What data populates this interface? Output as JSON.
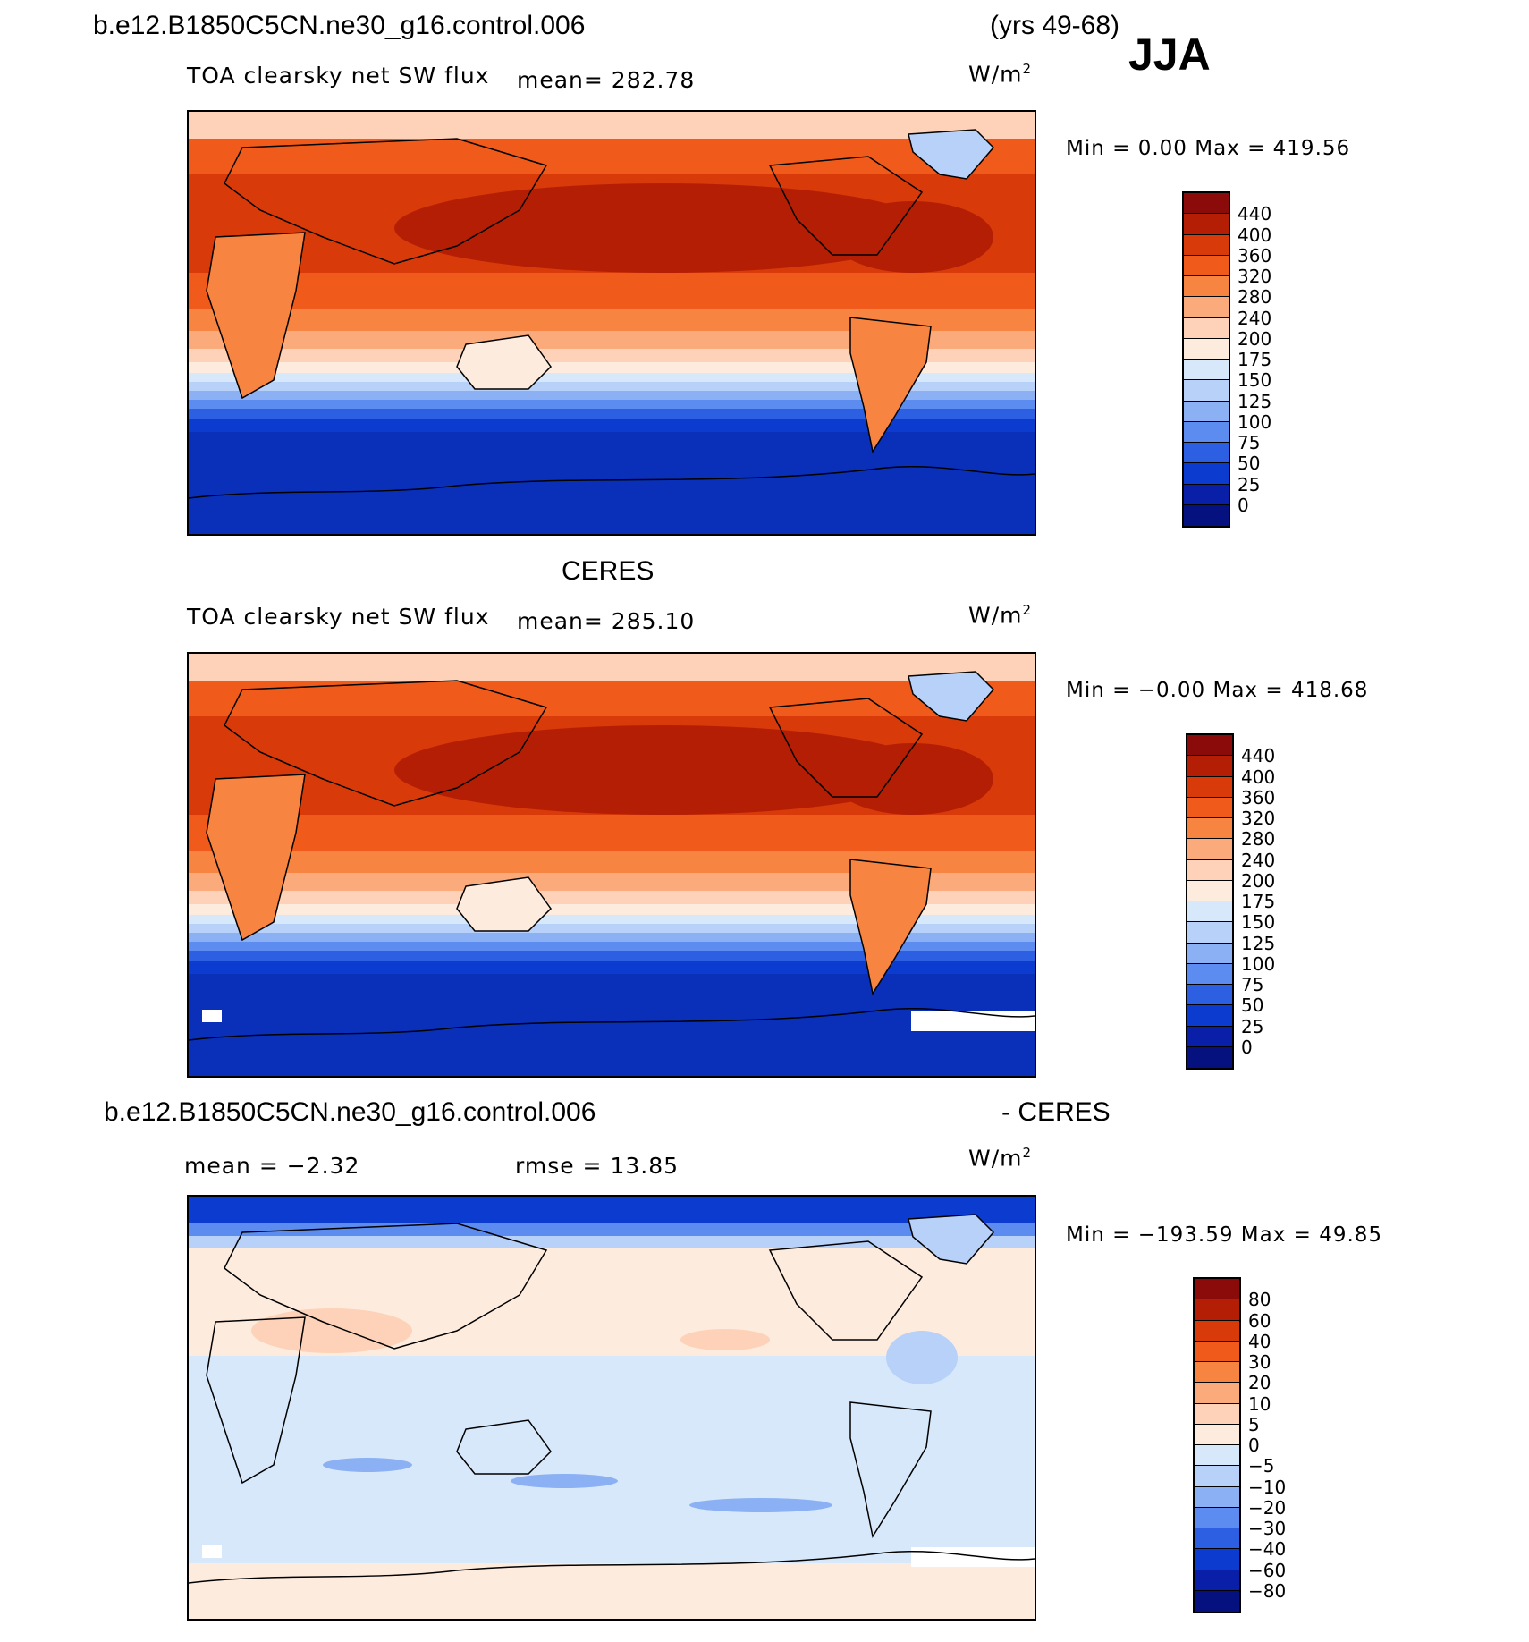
{
  "header": {
    "case": "b.e12.B1850C5CN.ne30_g16.control.006",
    "years": "(yrs 49-68)",
    "season": "JJA"
  },
  "panels": [
    {
      "title": "",
      "variable": "TOA clearsky net SW flux",
      "mean_label": "mean= 282.78",
      "units": "W/m",
      "units_sup": "2",
      "minmax": "Min =    0.00 Max = 419.56",
      "colorbar": {
        "levels": [
          "440",
          "400",
          "360",
          "320",
          "280",
          "240",
          "200",
          "175",
          "150",
          "125",
          "100",
          "75",
          "50",
          "25",
          "0"
        ],
        "colors": [
          "#8b0a0a",
          "#b31e04",
          "#d93a0a",
          "#f05a1a",
          "#f78440",
          "#fbab7b",
          "#fdd2b8",
          "#fdebde",
          "#d7e8fa",
          "#b7d1f8",
          "#8bb1f4",
          "#5d8cf0",
          "#2d5fe3",
          "#0c3bd0",
          "#0a1fa8",
          "#061180"
        ]
      }
    },
    {
      "title": "CERES",
      "variable": "TOA clearsky net SW flux",
      "mean_label": "mean= 285.10",
      "units": "W/m",
      "units_sup": "2",
      "minmax": "Min =  −0.00 Max = 418.68",
      "colorbar": {
        "levels": [
          "440",
          "400",
          "360",
          "320",
          "280",
          "240",
          "200",
          "175",
          "150",
          "125",
          "100",
          "75",
          "50",
          "25",
          "0"
        ],
        "colors": [
          "#8b0a0a",
          "#b31e04",
          "#d93a0a",
          "#f05a1a",
          "#f78440",
          "#fbab7b",
          "#fdd2b8",
          "#fdebde",
          "#d7e8fa",
          "#b7d1f8",
          "#8bb1f4",
          "#5d8cf0",
          "#2d5fe3",
          "#0c3bd0",
          "#0a1fa8",
          "#061180"
        ]
      }
    },
    {
      "title_left": "b.e12.B1850C5CN.ne30_g16.control.006",
      "title_right": "- CERES",
      "mean_label": "mean =   −2.32",
      "rmse_label": "rmse =   13.85",
      "units": "W/m",
      "units_sup": "2",
      "minmax": "Min = −193.59 Max =   49.85",
      "colorbar": {
        "levels": [
          "80",
          "60",
          "40",
          "30",
          "20",
          "10",
          "5",
          "0",
          "−5",
          "−10",
          "−20",
          "−30",
          "−40",
          "−60",
          "−80"
        ],
        "colors": [
          "#8b0a0a",
          "#b31e04",
          "#d93a0a",
          "#f05a1a",
          "#f78440",
          "#fbab7b",
          "#fdd2b8",
          "#fdebde",
          "#d7e8fa",
          "#b7d1f8",
          "#8bb1f4",
          "#5d8cf0",
          "#2d5fe3",
          "#0c3bd0",
          "#0a1fa8",
          "#061180"
        ]
      }
    }
  ]
}
